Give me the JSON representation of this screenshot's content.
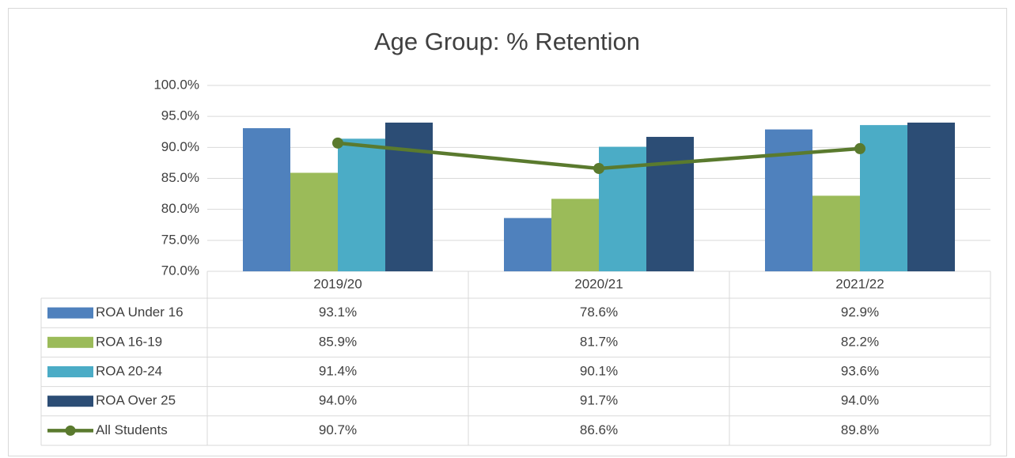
{
  "chart_data": {
    "type": "bar",
    "title": "Age Group: % Retention",
    "categories": [
      "2019/20",
      "2020/21",
      "2021/22"
    ],
    "series": [
      {
        "name": "ROA Under 16",
        "color": "#4f81bd",
        "values": [
          93.1,
          78.6,
          92.9
        ],
        "value_labels": [
          "93.1%",
          "78.6%",
          "92.9%"
        ]
      },
      {
        "name": "ROA 16-19",
        "color": "#9bbb59",
        "values": [
          85.9,
          81.7,
          82.2
        ],
        "value_labels": [
          "85.9%",
          "81.7%",
          "82.2%"
        ]
      },
      {
        "name": "ROA 20-24",
        "color": "#4bacc6",
        "values": [
          91.4,
          90.1,
          93.6
        ],
        "value_labels": [
          "91.4%",
          "90.1%",
          "93.6%"
        ]
      },
      {
        "name": "ROA Over 25",
        "color": "#2c4d75",
        "values": [
          94.0,
          91.7,
          94.0
        ],
        "value_labels": [
          "94.0%",
          "91.7%",
          "94.0%"
        ]
      },
      {
        "name": "All Students",
        "type": "line",
        "color": "#5a7a2e",
        "values": [
          90.7,
          86.6,
          89.8
        ],
        "value_labels": [
          "90.7%",
          "86.6%",
          "89.8%"
        ]
      }
    ],
    "ylim": [
      70,
      100
    ],
    "yticks": [
      {
        "value": 70,
        "label": "70.0%"
      },
      {
        "value": 75,
        "label": "75.0%"
      },
      {
        "value": 80,
        "label": "80.0%"
      },
      {
        "value": 85,
        "label": "85.0%"
      },
      {
        "value": 90,
        "label": "90.0%"
      },
      {
        "value": 95,
        "label": "95.0%"
      },
      {
        "value": 100,
        "label": "100.0%"
      }
    ],
    "grid": true,
    "data_table": true
  }
}
